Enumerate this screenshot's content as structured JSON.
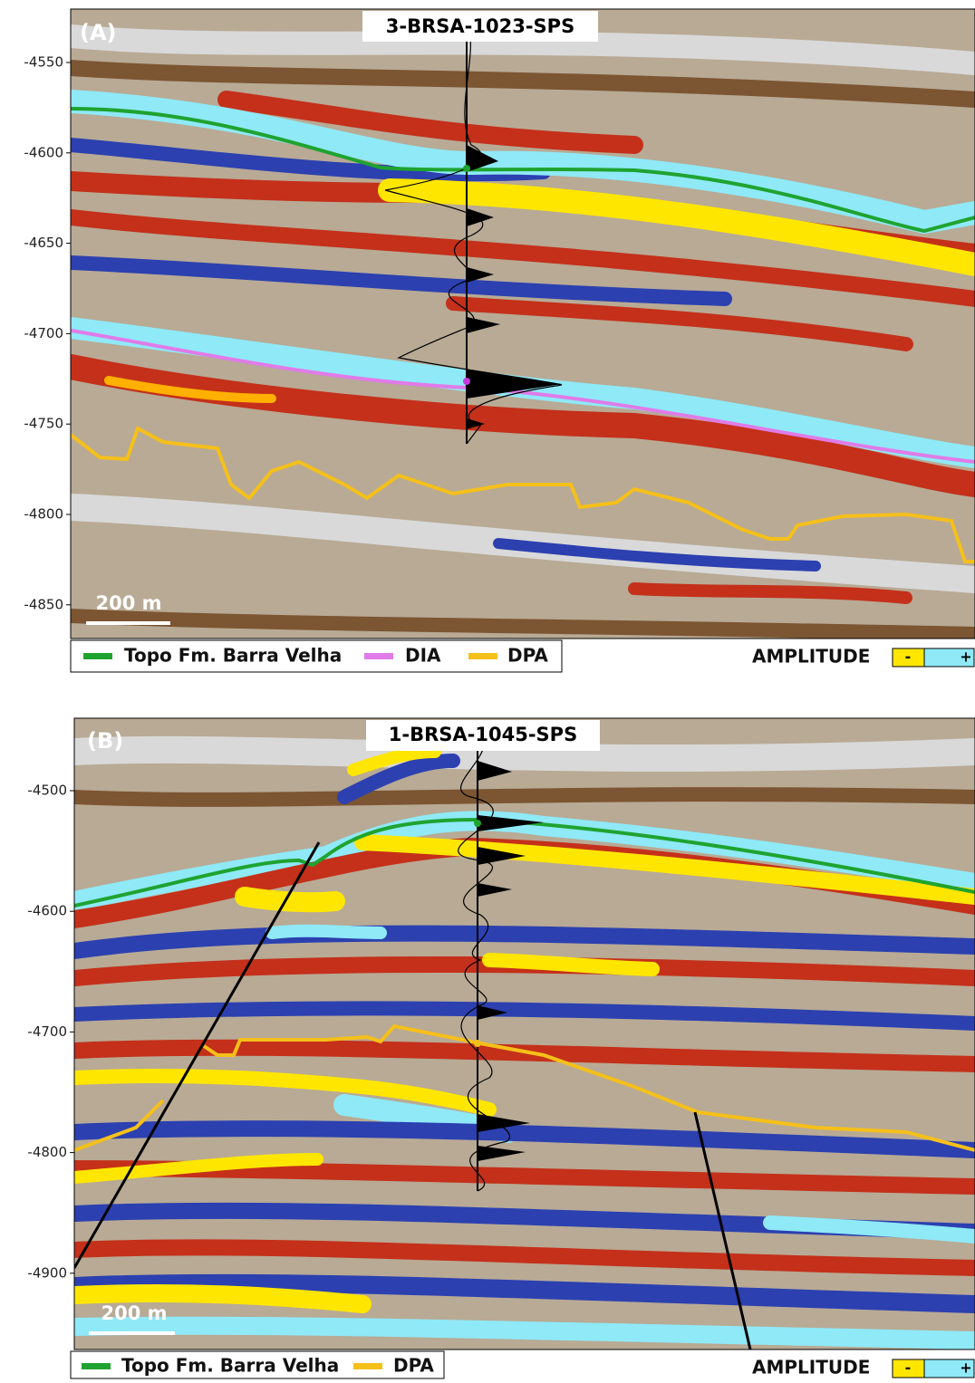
{
  "panels": [
    {
      "label": "(A)",
      "well": "3-BRSA-1023-SPS",
      "depth_ticks": [
        "-4550",
        "-4600",
        "-4650",
        "-4700",
        "-4750",
        "-4800",
        "-4850"
      ],
      "scale_bar": "200 m",
      "legend": [
        "Topo Fm. Barra Velha",
        "DIA",
        "DPA"
      ],
      "amplitude": {
        "title": "AMPLITUDE",
        "low": "-",
        "high": "+"
      }
    },
    {
      "label": "(B)",
      "well": "1-BRSA-1045-SPS",
      "depth_ticks": [
        "-4500",
        "-4600",
        "-4700",
        "-4800",
        "-4900"
      ],
      "scale_bar": "200 m",
      "legend": [
        "Topo Fm. Barra Velha",
        "DPA"
      ],
      "amplitude": {
        "title": "AMPLITUDE",
        "low": "-",
        "high": "+"
      }
    }
  ]
}
